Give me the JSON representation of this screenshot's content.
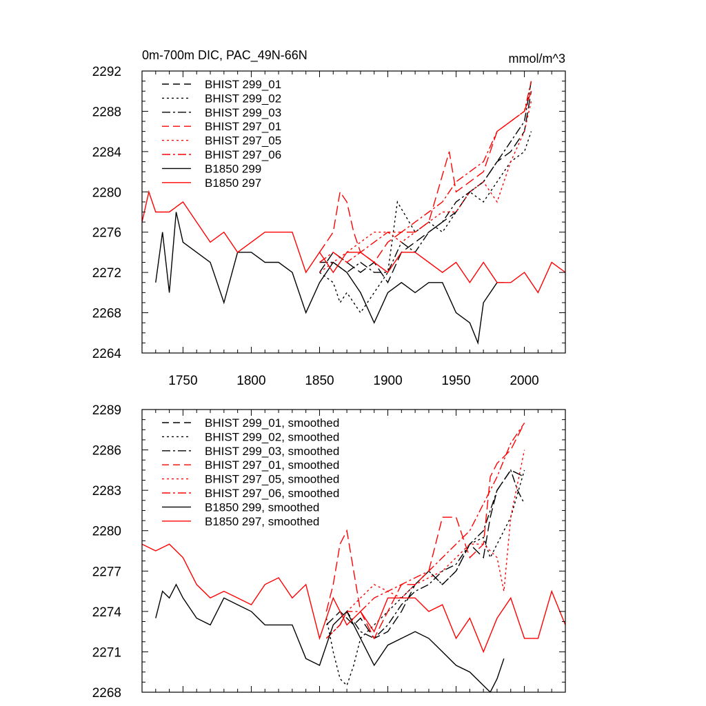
{
  "chart_data": [
    {
      "type": "line",
      "title": "0m-700m DIC, PAC_49N-66N",
      "units": "mmol/m^3",
      "xlim": [
        1720,
        2030
      ],
      "ylim": [
        2264,
        2292
      ],
      "xticks": [
        1750,
        1800,
        1850,
        1900,
        1950,
        2000
      ],
      "yticks": [
        2264,
        2268,
        2272,
        2276,
        2280,
        2284,
        2288,
        2292
      ],
      "legend_position": "top-left",
      "series": [
        {
          "name": "BHIST 299_01",
          "color": "#000000",
          "dash": "long-dash",
          "x": [
            1850,
            1860,
            1870,
            1880,
            1890,
            1900,
            1910,
            1920,
            1930,
            1940,
            1950,
            1960,
            1970,
            1980,
            1990,
            2000,
            2005
          ],
          "y": [
            2272,
            2274,
            2273,
            2272,
            2273,
            2271,
            2274,
            2275,
            2276,
            2277,
            2278,
            2280,
            2281,
            2283,
            2284,
            2286,
            2290
          ]
        },
        {
          "name": "BHIST 299_02",
          "color": "#000000",
          "dash": "dot",
          "x": [
            1850,
            1860,
            1865,
            1870,
            1880,
            1890,
            1900,
            1907,
            1920,
            1930,
            1940,
            1950,
            1960,
            1970,
            1980,
            1990,
            2000,
            2005
          ],
          "y": [
            2272,
            2271,
            2269,
            2270,
            2268,
            2270,
            2272,
            2279,
            2276,
            2277,
            2276,
            2278,
            2280,
            2279,
            2281,
            2283,
            2284,
            2286
          ]
        },
        {
          "name": "BHIST 299_03",
          "color": "#000000",
          "dash": "dash-dot",
          "x": [
            1850,
            1860,
            1870,
            1880,
            1890,
            1900,
            1910,
            1920,
            1930,
            1940,
            1950,
            1960,
            1970,
            1980,
            1990,
            2000,
            2005
          ],
          "y": [
            2273,
            2273,
            2272,
            2273,
            2272,
            2272,
            2275,
            2274,
            2276,
            2277,
            2279,
            2280,
            2281,
            2283,
            2285,
            2287,
            2291
          ]
        },
        {
          "name": "BHIST 297_01",
          "color": "#ff0000",
          "dash": "long-dash",
          "x": [
            1850,
            1860,
            1865,
            1870,
            1875,
            1880,
            1890,
            1900,
            1910,
            1920,
            1930,
            1945,
            1950,
            1960,
            1970,
            1980,
            1990,
            2000,
            2005
          ],
          "y": [
            2274,
            2276,
            2280,
            2279,
            2276,
            2274,
            2273,
            2275,
            2276,
            2276,
            2277,
            2284,
            2280,
            2281,
            2282,
            2286,
            2287,
            2288,
            2290
          ]
        },
        {
          "name": "BHIST 297_05",
          "color": "#ff0000",
          "dash": "dot",
          "x": [
            1850,
            1860,
            1870,
            1880,
            1890,
            1900,
            1910,
            1920,
            1930,
            1940,
            1950,
            1960,
            1970,
            1980,
            1990,
            2000,
            2005
          ],
          "y": [
            2272,
            2273,
            2274,
            2275,
            2276,
            2276,
            2275,
            2276,
            2277,
            2278,
            2278,
            2280,
            2281,
            2279,
            2283,
            2286,
            2289
          ]
        },
        {
          "name": "BHIST 297_06",
          "color": "#ff0000",
          "dash": "dash-dot",
          "x": [
            1850,
            1860,
            1870,
            1880,
            1890,
            1900,
            1910,
            1920,
            1930,
            1940,
            1950,
            1960,
            1970,
            1980,
            1990,
            2000,
            2005
          ],
          "y": [
            2273,
            2274,
            2273,
            2274,
            2275,
            2276,
            2276,
            2277,
            2278,
            2279,
            2281,
            2282,
            2283,
            2286,
            2287,
            2288,
            2291
          ]
        },
        {
          "name": "B1850 299",
          "color": "#000000",
          "dash": "solid",
          "x": [
            1730,
            1735,
            1740,
            1745,
            1750,
            1760,
            1770,
            1780,
            1790,
            1800,
            1810,
            1820,
            1830,
            1840,
            1850,
            1860,
            1870,
            1880,
            1890,
            1900,
            1910,
            1920,
            1930,
            1940,
            1950,
            1960,
            1966,
            1970,
            1980,
            1985
          ],
          "y": [
            2271,
            2276,
            2270,
            2278,
            2275,
            2274,
            2273,
            2269,
            2274,
            2274,
            2273,
            2273,
            2272,
            2268,
            2271,
            2273,
            2272,
            2270,
            2267,
            2270,
            2271,
            2270,
            2271,
            2271,
            2268,
            2267,
            2265,
            2269,
            2271,
            2271
          ]
        },
        {
          "name": "B1850 297",
          "color": "#ff0000",
          "dash": "solid",
          "x": [
            1720,
            1725,
            1730,
            1740,
            1750,
            1760,
            1770,
            1780,
            1790,
            1800,
            1810,
            1820,
            1830,
            1840,
            1850,
            1860,
            1870,
            1880,
            1890,
            1900,
            1910,
            1920,
            1930,
            1940,
            1950,
            1960,
            1970,
            1980,
            1990,
            2000,
            2010,
            2020,
            2030
          ],
          "y": [
            2277,
            2280,
            2278,
            2278,
            2279,
            2277,
            2275,
            2276,
            2274,
            2275,
            2276,
            2276,
            2276,
            2272,
            2274,
            2272,
            2274,
            2274,
            2273,
            2272,
            2274,
            2274,
            2273,
            2272,
            2273,
            2271,
            2273,
            2271,
            2271,
            2272,
            2270,
            2273,
            2272
          ]
        }
      ]
    },
    {
      "type": "line",
      "title": "",
      "xlim": [
        1720,
        2030
      ],
      "ylim": [
        2268,
        2289
      ],
      "xticks": [
        1750,
        1800,
        1850,
        1900,
        1950,
        2000
      ],
      "yticks": [
        2268,
        2271,
        2274,
        2277,
        2280,
        2283,
        2286,
        2289
      ],
      "legend_position": "top-left",
      "series": [
        {
          "name": "BHIST 299_01, smoothed",
          "color": "#000000",
          "dash": "long-dash",
          "x": [
            1855,
            1865,
            1870,
            1875,
            1880,
            1890,
            1900,
            1910,
            1920,
            1930,
            1940,
            1950,
            1960,
            1970,
            1975,
            1980,
            1990,
            2000
          ],
          "y": [
            2273,
            2274,
            2273.5,
            2273,
            2273.5,
            2272,
            2272.5,
            2274,
            2276,
            2277,
            2276,
            2277,
            2279,
            2278,
            2281,
            2283,
            2284.5,
            2284
          ]
        },
        {
          "name": "BHIST 299_02, smoothed",
          "color": "#000000",
          "dash": "dot",
          "x": [
            1855,
            1860,
            1865,
            1870,
            1875,
            1880,
            1890,
            1900,
            1910,
            1920,
            1930,
            1940,
            1950,
            1960,
            1970,
            1975,
            1980,
            1990,
            2000
          ],
          "y": [
            2273.5,
            2271,
            2269,
            2268.5,
            2270,
            2272,
            2273,
            2274,
            2275,
            2276,
            2277,
            2276,
            2277,
            2279,
            2279.5,
            2278,
            2279,
            2281,
            2284.5
          ]
        },
        {
          "name": "BHIST 299_03, smoothed",
          "color": "#000000",
          "dash": "dash-dot",
          "x": [
            1855,
            1865,
            1870,
            1880,
            1890,
            1900,
            1910,
            1920,
            1930,
            1940,
            1950,
            1960,
            1970,
            1980,
            1990,
            1995,
            2000
          ],
          "y": [
            2272,
            2273,
            2274,
            2272.5,
            2272,
            2273,
            2274.5,
            2275.5,
            2276,
            2277,
            2277.5,
            2279,
            2280,
            2283,
            2284.5,
            2283,
            2282
          ]
        },
        {
          "name": "BHIST 297_01, smoothed",
          "color": "#ff0000",
          "dash": "long-dash",
          "x": [
            1855,
            1860,
            1865,
            1870,
            1875,
            1880,
            1890,
            1900,
            1910,
            1920,
            1930,
            1940,
            1950,
            1960,
            1970,
            1975,
            1980,
            1990,
            2000
          ],
          "y": [
            2274,
            2276,
            2279,
            2280,
            2277,
            2274,
            2272,
            2274,
            2276,
            2276,
            2277,
            2281,
            2281,
            2278,
            2279,
            2284,
            2285,
            2286,
            2288
          ]
        },
        {
          "name": "BHIST 297_05, smoothed",
          "color": "#ff0000",
          "dash": "dot",
          "x": [
            1855,
            1865,
            1870,
            1880,
            1890,
            1900,
            1910,
            1920,
            1930,
            1940,
            1950,
            1960,
            1970,
            1980,
            1985,
            1990,
            2000
          ],
          "y": [
            2272,
            2273,
            2274,
            2275,
            2276,
            2275.5,
            2275,
            2276,
            2276.5,
            2277,
            2278,
            2279,
            2279,
            2278,
            2275.5,
            2281,
            2286
          ]
        },
        {
          "name": "BHIST 297_06, smoothed",
          "color": "#ff0000",
          "dash": "dash-dot",
          "x": [
            1855,
            1865,
            1870,
            1880,
            1890,
            1900,
            1910,
            1920,
            1930,
            1940,
            1950,
            1960,
            1970,
            1980,
            1990,
            2000
          ],
          "y": [
            2272,
            2273,
            2274,
            2274,
            2275,
            2275.5,
            2276,
            2276.5,
            2277,
            2278,
            2279,
            2280,
            2282,
            2284,
            2286.5,
            2288
          ]
        },
        {
          "name": "B1850 299, smoothed",
          "color": "#000000",
          "dash": "solid",
          "x": [
            1730,
            1735,
            1740,
            1745,
            1750,
            1760,
            1770,
            1780,
            1790,
            1800,
            1810,
            1820,
            1830,
            1840,
            1850,
            1860,
            1870,
            1880,
            1890,
            1900,
            1910,
            1920,
            1930,
            1940,
            1950,
            1960,
            1970,
            1975,
            1980,
            1985
          ],
          "y": [
            2273.5,
            2275.5,
            2275,
            2276,
            2275,
            2273.5,
            2273,
            2275,
            2274.5,
            2274,
            2273,
            2273,
            2273,
            2270.5,
            2270,
            2273,
            2274,
            2272,
            2270,
            2271.5,
            2272,
            2272.5,
            2272,
            2271,
            2270,
            2269.5,
            2268.5,
            2268,
            2269,
            2270.5
          ]
        },
        {
          "name": "B1850 297, smoothed",
          "color": "#ff0000",
          "dash": "solid",
          "x": [
            1720,
            1730,
            1740,
            1750,
            1760,
            1770,
            1780,
            1790,
            1800,
            1810,
            1820,
            1830,
            1840,
            1850,
            1860,
            1870,
            1880,
            1890,
            1900,
            1910,
            1920,
            1930,
            1940,
            1950,
            1960,
            1970,
            1980,
            1990,
            2000,
            2010,
            2020,
            2030
          ],
          "y": [
            2279,
            2278.5,
            2279,
            2278,
            2276,
            2275,
            2275.5,
            2275,
            2274.5,
            2276,
            2276.5,
            2275,
            2276,
            2272,
            2275,
            2273,
            2274,
            2272.5,
            2275,
            2275,
            2275,
            2274,
            2274.5,
            2272,
            2273.5,
            2271,
            2273.5,
            2275,
            2272,
            2272,
            2275.5,
            2273
          ]
        }
      ]
    }
  ]
}
